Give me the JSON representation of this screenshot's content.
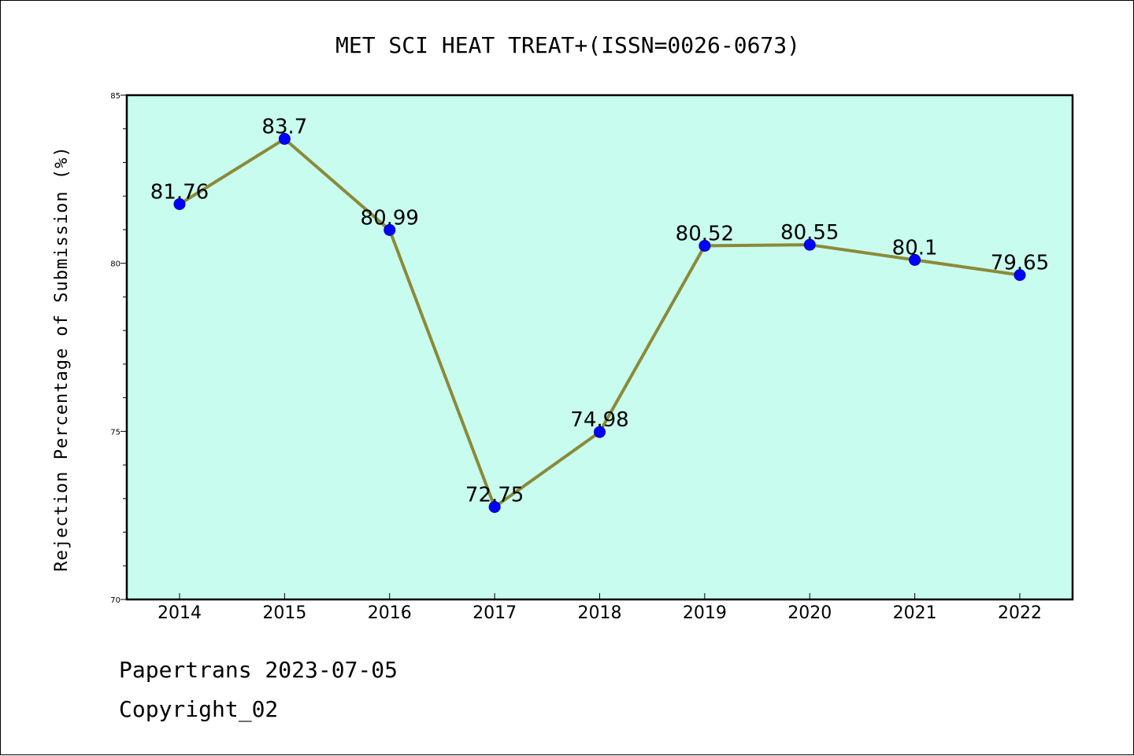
{
  "chart_data": {
    "type": "line",
    "title": "MET SCI HEAT TREAT+(ISSN=0026-0673)",
    "xlabel": "",
    "ylabel": "Rejection Percentage of Submission (%)",
    "categories": [
      "2014",
      "2015",
      "2016",
      "2017",
      "2018",
      "2019",
      "2020",
      "2021",
      "2022"
    ],
    "values": [
      81.76,
      83.7,
      80.99,
      72.75,
      74.98,
      80.52,
      80.55,
      80.1,
      79.65
    ],
    "data_labels": [
      "81.76",
      "83.7",
      "80.99",
      "72.75",
      "74.98",
      "80.52",
      "80.55",
      "80.1",
      "79.65"
    ],
    "ylim": [
      70,
      85
    ],
    "y_ticks": [
      "70",
      "75",
      "80",
      "85"
    ],
    "grid": false,
    "legend": "none",
    "colors": {
      "plot_background": "#c8fcee",
      "line": "#8b8a3a",
      "marker": "#0000ff"
    }
  },
  "footer": {
    "source": "Papertrans 2023-07-05",
    "copyright": "Copyright_02"
  }
}
